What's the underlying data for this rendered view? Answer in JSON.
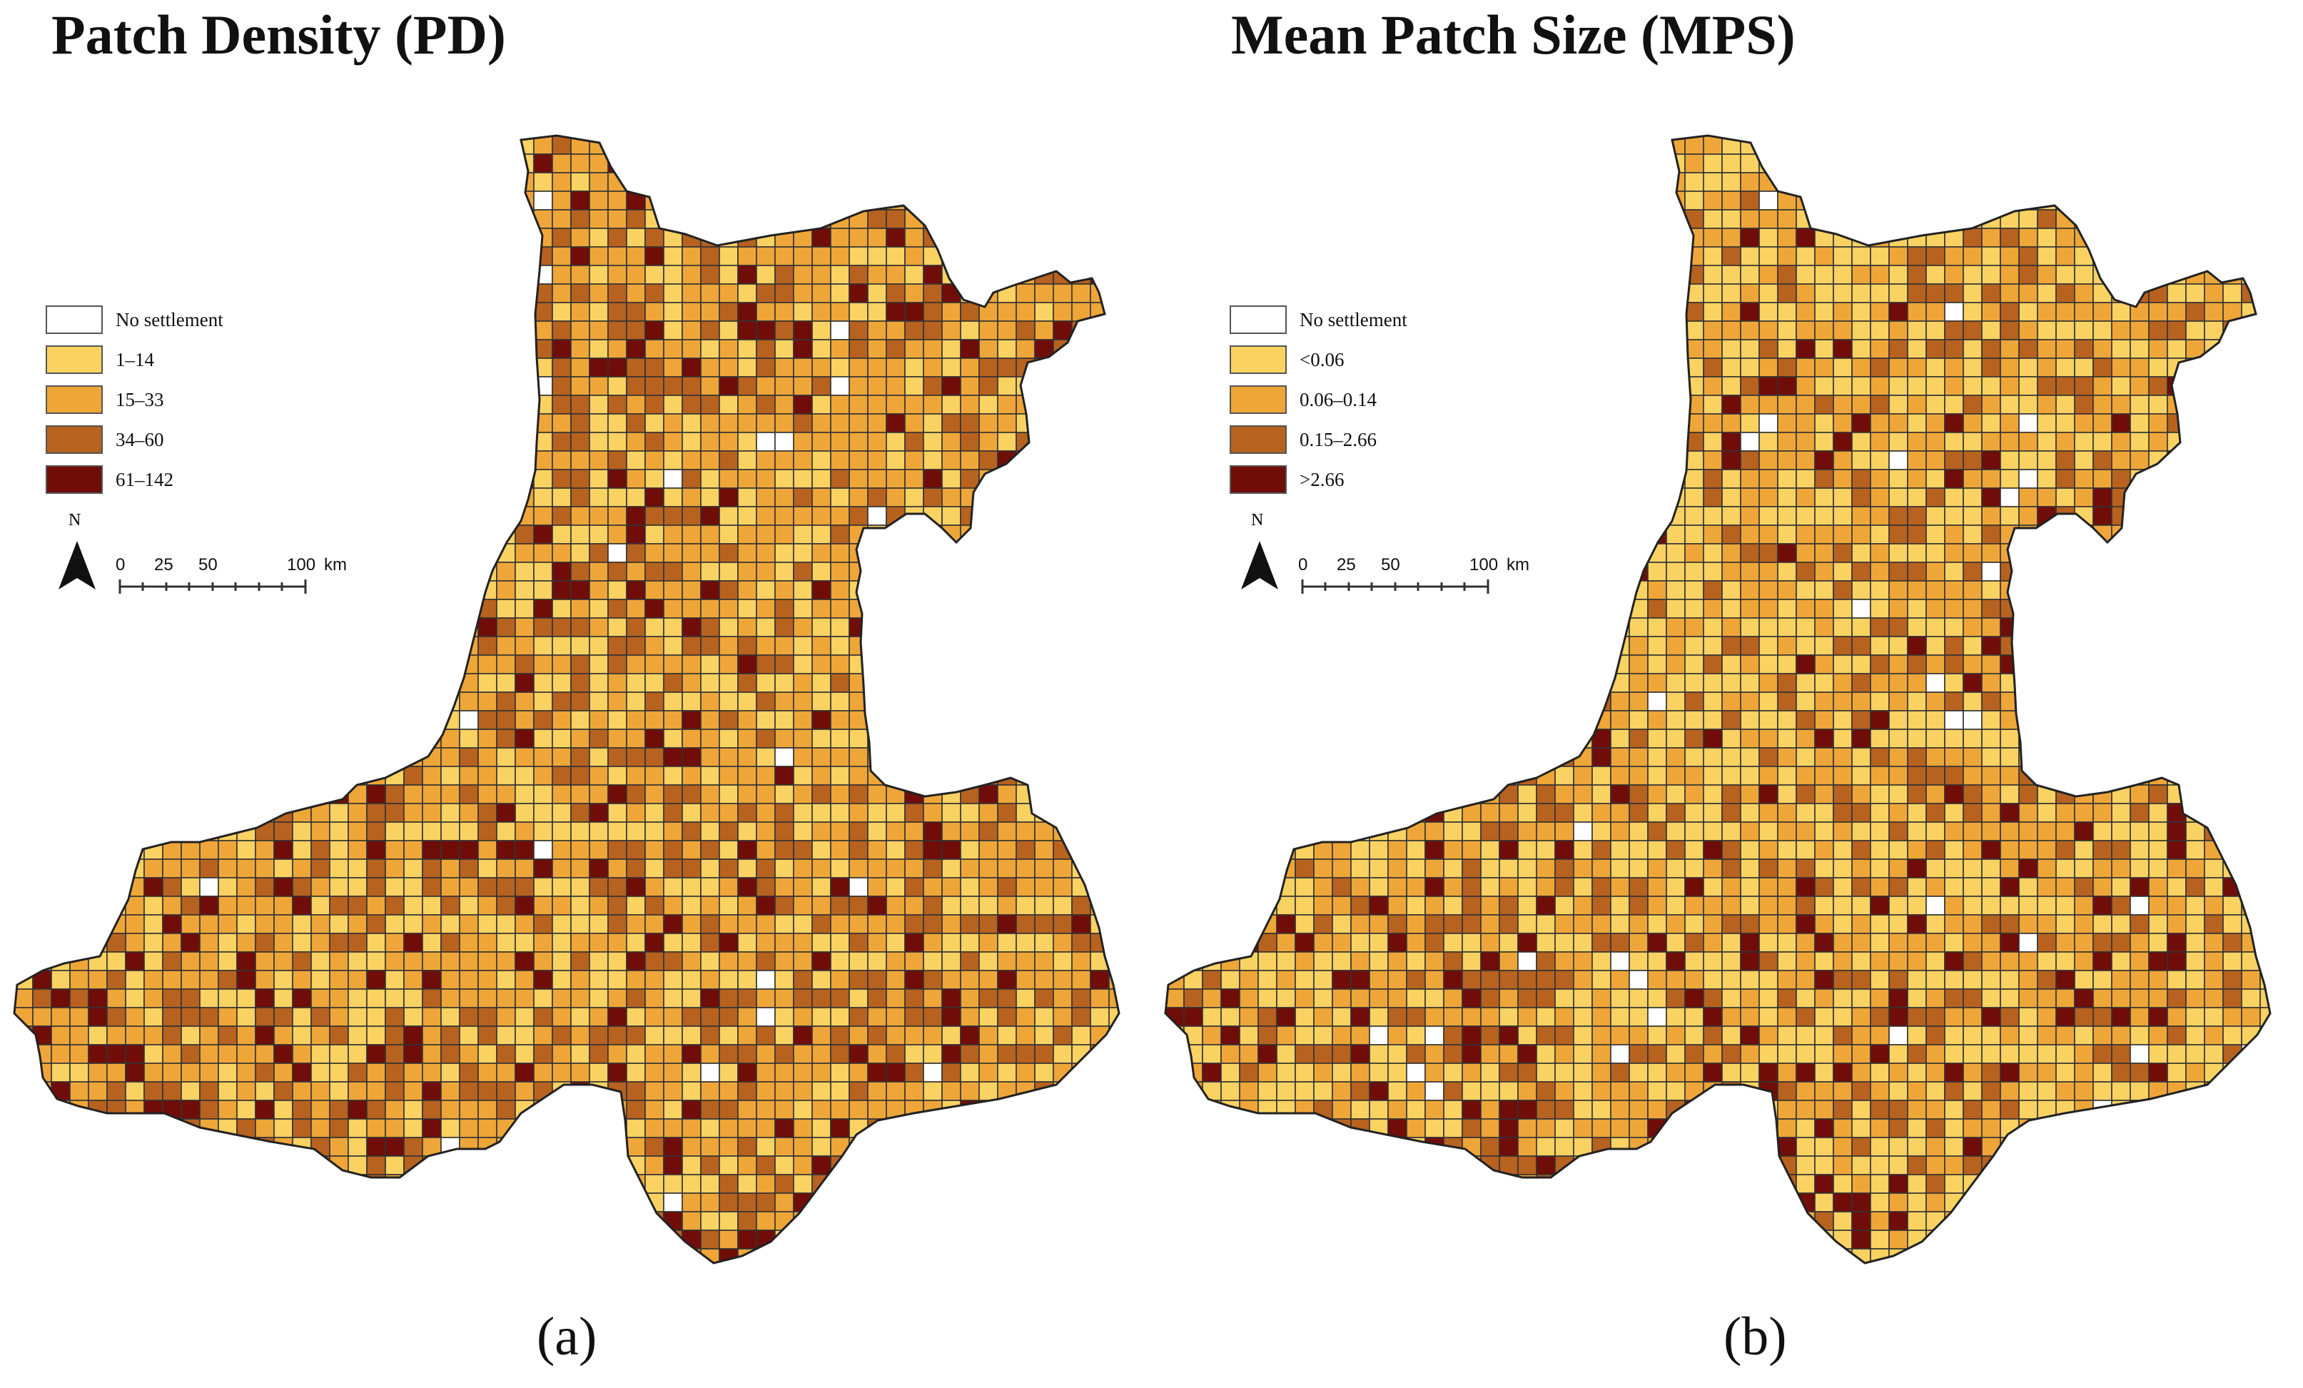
{
  "panels": [
    {
      "id": "a",
      "title": "Patch Density (PD)",
      "caption": "(a)",
      "legend": [
        {
          "label": "No settlement",
          "color": "#ffffff"
        },
        {
          "label": "1–14",
          "color": "#f9d262"
        },
        {
          "label": "15–33",
          "color": "#efa638"
        },
        {
          "label": "34–60",
          "color": "#b7621f"
        },
        {
          "label": "61–142",
          "color": "#700d08"
        }
      ],
      "class_weights": [
        0.02,
        0.28,
        0.4,
        0.22,
        0.08
      ]
    },
    {
      "id": "b",
      "title": "Mean Patch Size (MPS)",
      "caption": "(b)",
      "legend": [
        {
          "label": "No settlement",
          "color": "#ffffff"
        },
        {
          "label": "<0.06",
          "color": "#f9d262"
        },
        {
          "label": "0.06–0.14",
          "color": "#efa638"
        },
        {
          "label": "0.15–2.66",
          "color": "#b7621f"
        },
        {
          "label": ">2.66",
          "color": "#700d08"
        }
      ],
      "class_weights": [
        0.03,
        0.42,
        0.33,
        0.17,
        0.05
      ]
    }
  ],
  "north_label": "N",
  "scale": {
    "ticks": [
      "0",
      "25",
      "50",
      "100"
    ],
    "unit": "km"
  },
  "grid_line_color": "#333333"
}
